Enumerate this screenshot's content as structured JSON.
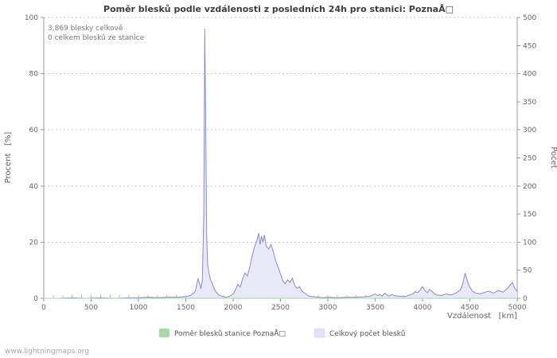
{
  "footer": "www.lightningmaps.org",
  "chart_data": {
    "type": "area",
    "title": "Poměr blesků podle vzdálenosti z posledních 24h pro stanici: PoznaÅ□",
    "annotations": [
      "3,869 blesky celkově",
      "0 celkem blesků ze stanice"
    ],
    "xlabel": "Vzdálenost   [km]",
    "ylabel_left": "Procent   [%]",
    "ylabel_right": "Počet",
    "xlim": [
      0,
      5000
    ],
    "ylim_left": [
      0,
      100
    ],
    "ylim_right": [
      0,
      500
    ],
    "xticks": [
      0,
      500,
      1000,
      1500,
      2000,
      2500,
      3000,
      3500,
      4000,
      4500,
      5000
    ],
    "yticks_left": [
      0,
      20,
      40,
      60,
      80,
      100
    ],
    "yticks_right": [
      0,
      50,
      100,
      150,
      200,
      250,
      300,
      350,
      400,
      450,
      500
    ],
    "minor_xtick_step": 100,
    "grid": "horizontal-dashed",
    "legend_position": "bottom-center",
    "colors": {
      "count_fill": "#e8e8f7",
      "count_stroke": "#8a8ace",
      "ratio_stroke": "#a6d7a6"
    },
    "legend": [
      {
        "label": "Poměr blesků stanice PoznaÅ□",
        "color": "#a6d7a6"
      },
      {
        "label": "Celkový počet blesků",
        "color": "#e2e2f6"
      }
    ],
    "series": [
      {
        "name": "Poměr blesků stanice PoznaÅ□",
        "axis": "left",
        "unit": "%",
        "points": [
          [
            0,
            0
          ],
          [
            5000,
            0
          ]
        ]
      },
      {
        "name": "Celkový počet blesků",
        "axis": "right",
        "unit": "count",
        "points": [
          [
            0,
            0
          ],
          [
            150,
            0
          ],
          [
            300,
            1
          ],
          [
            450,
            0
          ],
          [
            600,
            1
          ],
          [
            750,
            0
          ],
          [
            900,
            1
          ],
          [
            1000,
            1
          ],
          [
            1100,
            2
          ],
          [
            1200,
            1
          ],
          [
            1300,
            2
          ],
          [
            1400,
            2
          ],
          [
            1500,
            3
          ],
          [
            1550,
            5
          ],
          [
            1600,
            12
          ],
          [
            1615,
            25
          ],
          [
            1630,
            35
          ],
          [
            1645,
            27
          ],
          [
            1660,
            17
          ],
          [
            1675,
            32
          ],
          [
            1690,
            150
          ],
          [
            1700,
            480
          ],
          [
            1710,
            320
          ],
          [
            1720,
            115
          ],
          [
            1730,
            60
          ],
          [
            1745,
            45
          ],
          [
            1760,
            34
          ],
          [
            1780,
            26
          ],
          [
            1800,
            17
          ],
          [
            1825,
            10
          ],
          [
            1850,
            6
          ],
          [
            1875,
            4
          ],
          [
            1900,
            3
          ],
          [
            1925,
            2
          ],
          [
            1950,
            3
          ],
          [
            1975,
            5
          ],
          [
            2000,
            8
          ],
          [
            2025,
            15
          ],
          [
            2050,
            25
          ],
          [
            2075,
            20
          ],
          [
            2100,
            35
          ],
          [
            2125,
            45
          ],
          [
            2150,
            40
          ],
          [
            2175,
            55
          ],
          [
            2200,
            75
          ],
          [
            2225,
            92
          ],
          [
            2250,
            103
          ],
          [
            2270,
            116
          ],
          [
            2285,
            96
          ],
          [
            2300,
            111
          ],
          [
            2315,
            100
          ],
          [
            2330,
            113
          ],
          [
            2350,
            93
          ],
          [
            2375,
            88
          ],
          [
            2400,
            96
          ],
          [
            2425,
            82
          ],
          [
            2450,
            66
          ],
          [
            2475,
            56
          ],
          [
            2500,
            43
          ],
          [
            2525,
            31
          ],
          [
            2550,
            26
          ],
          [
            2575,
            33
          ],
          [
            2600,
            28
          ],
          [
            2625,
            36
          ],
          [
            2650,
            23
          ],
          [
            2675,
            18
          ],
          [
            2700,
            21
          ],
          [
            2725,
            13
          ],
          [
            2750,
            10
          ],
          [
            2775,
            7
          ],
          [
            2800,
            4
          ],
          [
            2850,
            3
          ],
          [
            2900,
            2
          ],
          [
            2950,
            1
          ],
          [
            3000,
            2
          ],
          [
            3100,
            1
          ],
          [
            3200,
            2
          ],
          [
            3300,
            2
          ],
          [
            3400,
            3
          ],
          [
            3450,
            4
          ],
          [
            3500,
            8
          ],
          [
            3525,
            5
          ],
          [
            3550,
            7
          ],
          [
            3575,
            4
          ],
          [
            3600,
            9
          ],
          [
            3625,
            6
          ],
          [
            3650,
            4
          ],
          [
            3675,
            7
          ],
          [
            3700,
            5
          ],
          [
            3750,
            4
          ],
          [
            3800,
            3
          ],
          [
            3850,
            5
          ],
          [
            3900,
            8
          ],
          [
            3925,
            12
          ],
          [
            3950,
            10
          ],
          [
            3975,
            15
          ],
          [
            4000,
            21
          ],
          [
            4025,
            14
          ],
          [
            4050,
            10
          ],
          [
            4075,
            16
          ],
          [
            4100,
            12
          ],
          [
            4125,
            8
          ],
          [
            4150,
            6
          ],
          [
            4200,
            5
          ],
          [
            4250,
            8
          ],
          [
            4300,
            6
          ],
          [
            4350,
            9
          ],
          [
            4400,
            15
          ],
          [
            4425,
            26
          ],
          [
            4450,
            45
          ],
          [
            4475,
            30
          ],
          [
            4500,
            20
          ],
          [
            4525,
            13
          ],
          [
            4550,
            10
          ],
          [
            4600,
            8
          ],
          [
            4650,
            10
          ],
          [
            4700,
            13
          ],
          [
            4750,
            9
          ],
          [
            4800,
            14
          ],
          [
            4850,
            11
          ],
          [
            4900,
            18
          ],
          [
            4925,
            24
          ],
          [
            4950,
            28
          ],
          [
            4975,
            18
          ],
          [
            5000,
            12
          ]
        ]
      }
    ]
  }
}
